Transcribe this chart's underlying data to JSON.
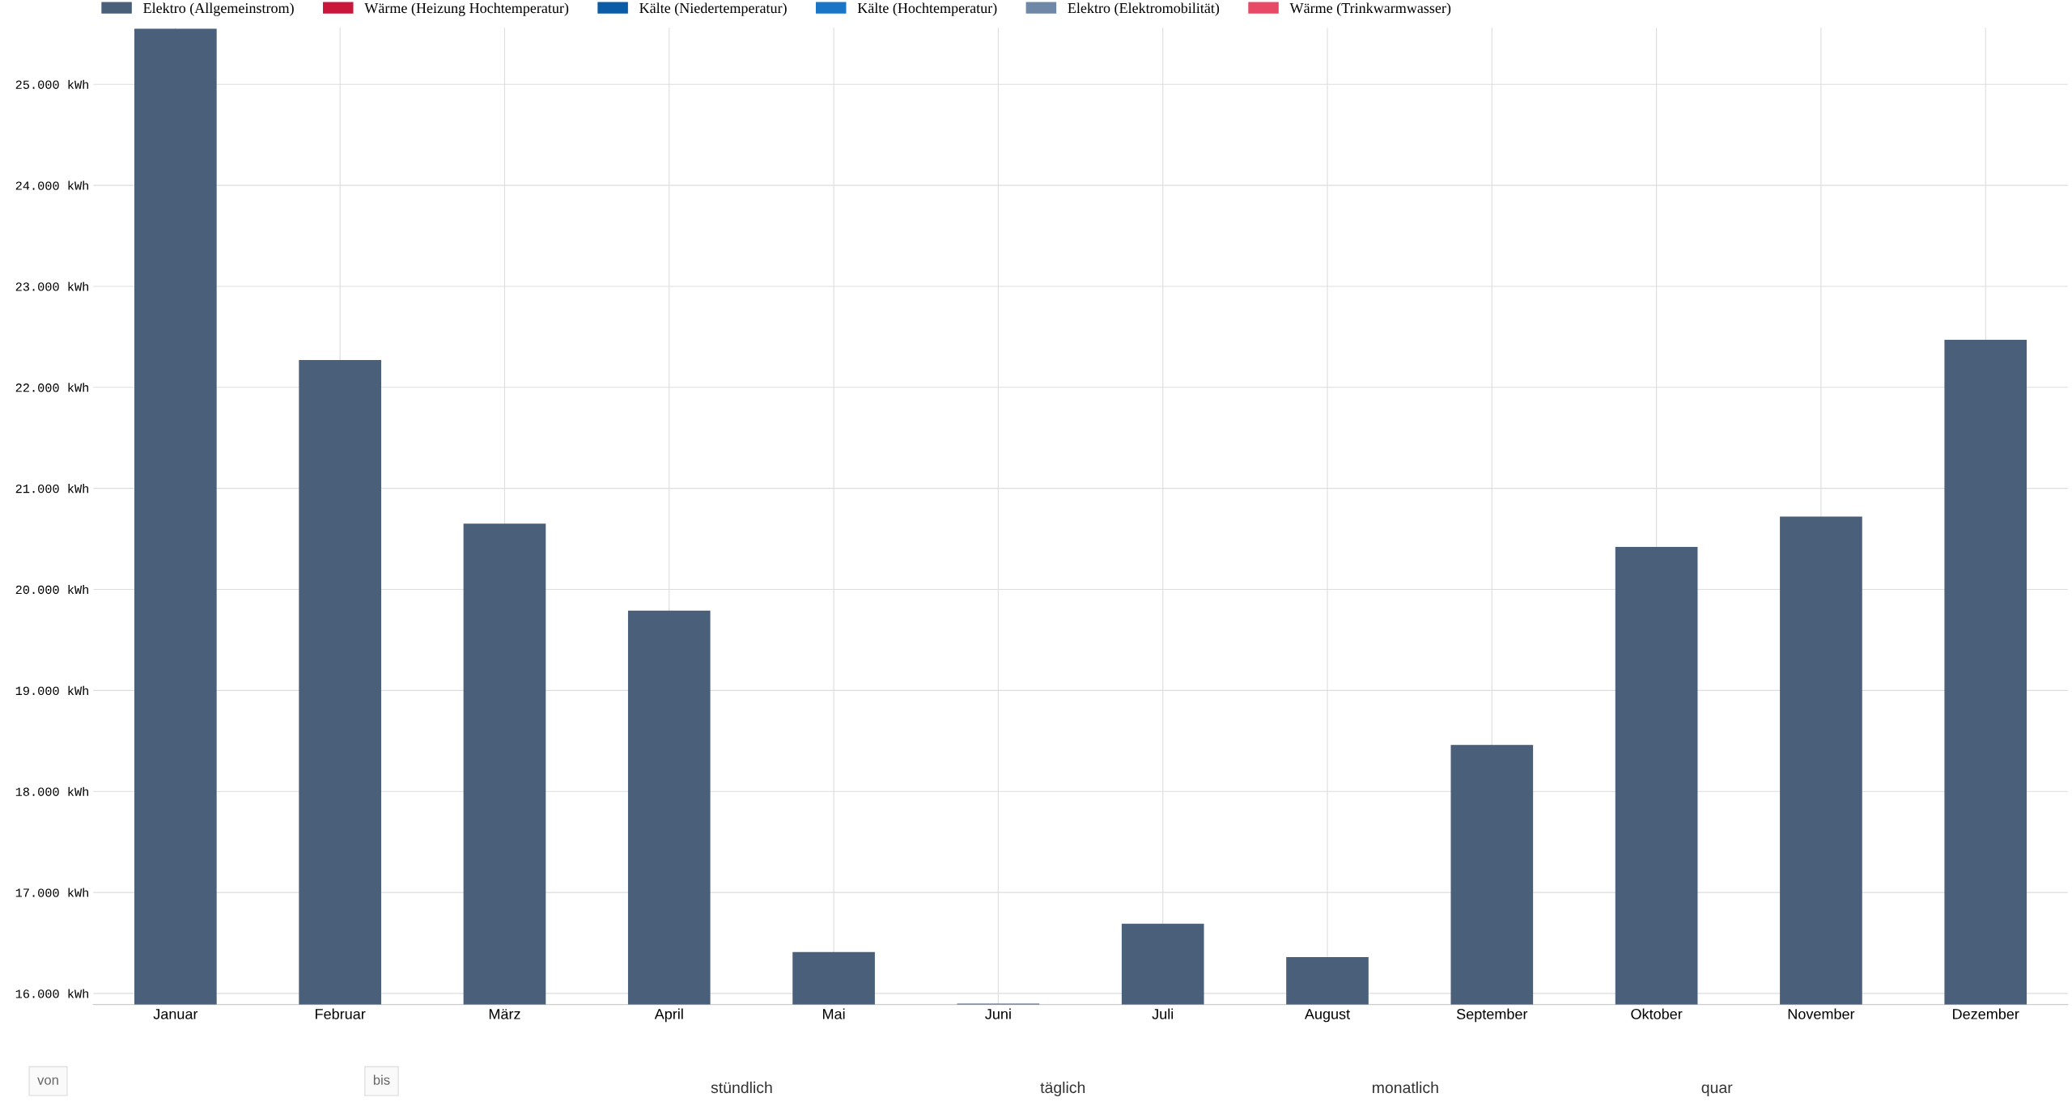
{
  "chart_data": {
    "type": "bar",
    "categories": [
      "Januar",
      "Februar",
      "März",
      "April",
      "Mai",
      "Juni",
      "Juli",
      "August",
      "September",
      "Oktober",
      "November",
      "Dezember"
    ],
    "series": [
      {
        "name": "Elektro (Allgemeinstrom)",
        "color": "#4a5f7a",
        "values": [
          25550,
          22270,
          20650,
          19790,
          16410,
          15900,
          16690,
          16360,
          18460,
          20420,
          20720,
          22470
        ]
      },
      {
        "name": "Wärme (Heizung Hochtemperatur)",
        "color": "#c8173a",
        "values": [
          null,
          null,
          null,
          null,
          null,
          null,
          null,
          null,
          null,
          null,
          null,
          null
        ]
      },
      {
        "name": "Kälte (Niedertemperatur)",
        "color": "#0b5ca6",
        "values": [
          null,
          null,
          null,
          null,
          null,
          null,
          null,
          null,
          null,
          null,
          null,
          null
        ]
      },
      {
        "name": "Kälte (Hochtemperatur)",
        "color": "#1b75c6",
        "values": [
          null,
          null,
          null,
          null,
          null,
          null,
          null,
          null,
          null,
          null,
          null,
          null
        ]
      },
      {
        "name": "Elektro (Elektromobilität)",
        "color": "#6f88a8",
        "values": [
          null,
          null,
          null,
          null,
          null,
          null,
          null,
          null,
          null,
          null,
          null,
          null
        ]
      },
      {
        "name": "Wärme (Trinkwarmwasser)",
        "color": "#e64a64",
        "values": [
          null,
          null,
          null,
          null,
          null,
          null,
          null,
          null,
          null,
          null,
          null,
          null
        ]
      }
    ],
    "ylim": [
      15890,
      25560
    ],
    "yticks": [
      {
        "value": 16000,
        "label": "16.000 kWh"
      },
      {
        "value": 17000,
        "label": "17.000 kWh"
      },
      {
        "value": 18000,
        "label": "18.000 kWh"
      },
      {
        "value": 19000,
        "label": "19.000 kWh"
      },
      {
        "value": 20000,
        "label": "20.000 kWh"
      },
      {
        "value": 21000,
        "label": "21.000 kWh"
      },
      {
        "value": 22000,
        "label": "22.000 kWh"
      },
      {
        "value": 23000,
        "label": "23.000 kWh"
      },
      {
        "value": 24000,
        "label": "24.000 kWh"
      },
      {
        "value": 25000,
        "label": "25.000 kWh"
      }
    ],
    "grid": true,
    "legend": "top left",
    "annotations": [
      "von",
      "bis",
      "stündlich",
      "täglich",
      "monatlich",
      "quar"
    ]
  }
}
